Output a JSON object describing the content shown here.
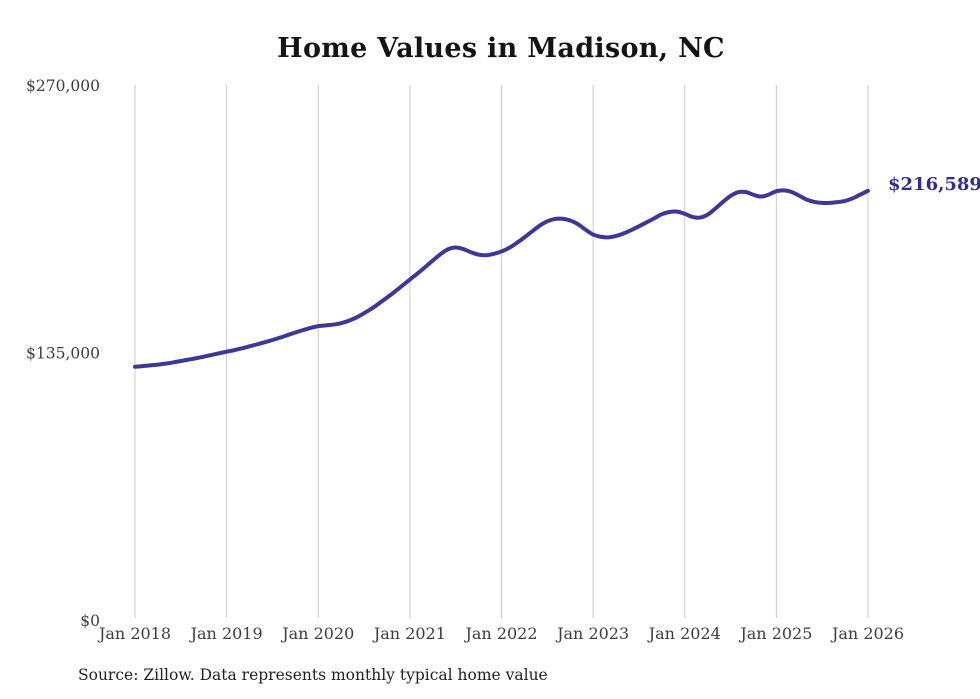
{
  "title": "Home Values in Madison, NC",
  "source_note": "Source: Zillow. Data represents monthly typical home value",
  "colors": {
    "line": "#3d3795",
    "end_label": "#322e87",
    "gridline": "#c9c9c9",
    "tick_label": "#3d3d3d",
    "title": "#141414",
    "background": "#ffffff"
  },
  "chart_data": {
    "type": "line",
    "title": "Home Values in Madison, NC",
    "x_start": "Jan 2018",
    "x_end": "Jan 2026",
    "x_interval": "monthly",
    "x_tick_labels": [
      "Jan 2018",
      "Jan 2019",
      "Jan 2020",
      "Jan 2021",
      "Jan 2022",
      "Jan 2023",
      "Jan 2024",
      "Jan 2025",
      "Jan 2026"
    ],
    "y_ticks": [
      {
        "label": "$0",
        "value": 0
      },
      {
        "label": "$135,000",
        "value": 135000
      },
      {
        "label": "$270,000",
        "value": 270000
      }
    ],
    "ylim": [
      0,
      270000
    ],
    "grid": "vertical-only",
    "legend": "none",
    "end_label": "$216,589",
    "end_value": 216589,
    "series": [
      {
        "name": "Typical home value",
        "values": [
          127800,
          128100,
          128500,
          128900,
          129400,
          130000,
          130700,
          131400,
          132100,
          132900,
          133700,
          134600,
          135400,
          136200,
          137100,
          138100,
          139100,
          140200,
          141300,
          142500,
          143800,
          145100,
          146300,
          147400,
          148300,
          148700,
          149100,
          149800,
          151000,
          152700,
          154800,
          157200,
          159900,
          162700,
          165600,
          168700,
          171800,
          174900,
          178100,
          181400,
          184600,
          187100,
          188000,
          187200,
          185600,
          184400,
          184100,
          184800,
          186000,
          187800,
          190300,
          193100,
          196100,
          199000,
          201200,
          202400,
          202500,
          201600,
          199800,
          197000,
          194500,
          193400,
          193100,
          193800,
          195100,
          196800,
          198700,
          200700,
          202700,
          204800,
          205900,
          206100,
          205000,
          203400,
          203100,
          204600,
          207600,
          211000,
          214000,
          215900,
          216000,
          214600,
          213700,
          214700,
          216400,
          216800,
          216000,
          214100,
          212100,
          211000,
          210500,
          210500,
          210900,
          211500,
          212800,
          214700,
          216589
        ]
      }
    ]
  }
}
